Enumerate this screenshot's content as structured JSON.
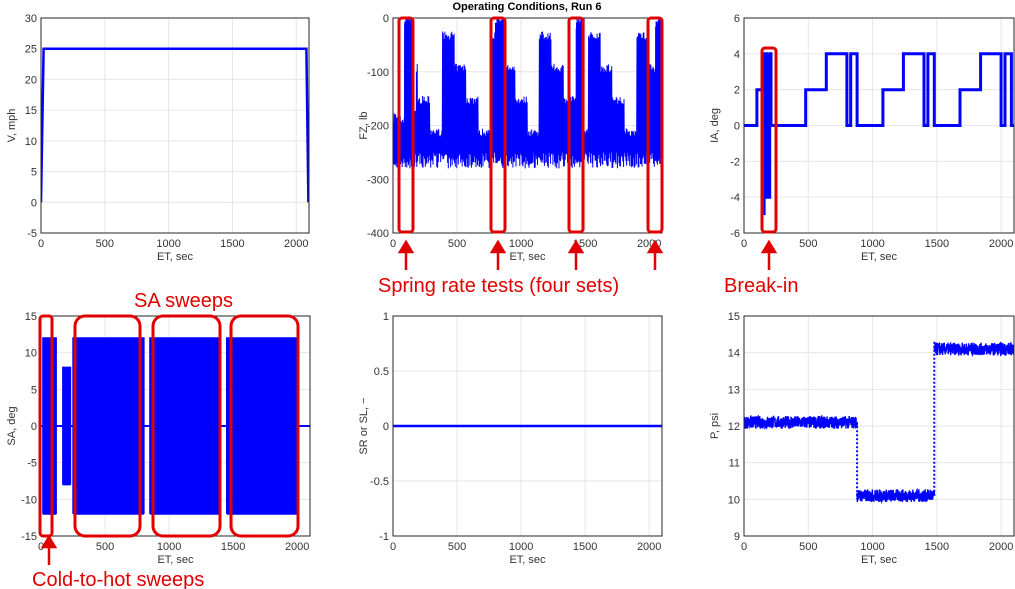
{
  "figure_title": "Operating Conditions, Run 6",
  "chart_data": [
    {
      "type": "line",
      "xlabel": "ET, sec",
      "ylabel": "V, mph",
      "xlim": [
        0,
        2100
      ],
      "ylim": [
        -5,
        30
      ],
      "xticks": [
        "0",
        "500",
        "1000",
        "1500",
        "2000"
      ],
      "yticks": [
        "-5",
        "0",
        "5",
        "10",
        "15",
        "20",
        "25",
        "30"
      ],
      "grid": true,
      "series": [
        {
          "color": "#0000ff",
          "x": [
            0,
            20,
            2080,
            2095
          ],
          "y": [
            0,
            25,
            25,
            0
          ]
        }
      ]
    },
    {
      "type": "line",
      "xlabel": "ET, sec",
      "ylabel": "FZ, lb",
      "xlim": [
        0,
        2100
      ],
      "ylim": [
        -400,
        0
      ],
      "xticks": [
        "0",
        "500",
        "1000",
        "1500",
        "2000"
      ],
      "yticks": [
        "-400",
        "-300",
        "-200",
        "-100",
        "0"
      ],
      "grid": true,
      "series": [
        {
          "color": "#0000ff",
          "pattern": "loaded load sweeps between -270 and -30 lb, spring-rate tests reaching 0 lb",
          "x": [
            0,
            2100
          ],
          "y": [
            -270,
            -30
          ]
        }
      ]
    },
    {
      "type": "line",
      "xlabel": "ET, sec",
      "ylabel": "IA, deg",
      "xlim": [
        0,
        2100
      ],
      "ylim": [
        -6,
        6
      ],
      "xticks": [
        "0",
        "500",
        "1000",
        "1500",
        "2000"
      ],
      "yticks": [
        "-6",
        "-4",
        "-2",
        "0",
        "2",
        "4",
        "6"
      ],
      "grid": true,
      "series": [
        {
          "color": "#0000ff",
          "x": [
            0,
            100,
            100,
            160,
            160,
            175,
            175,
            200,
            200,
            210,
            210,
            480,
            480,
            640,
            640,
            800,
            800,
            830,
            830,
            880,
            880,
            1080,
            1080,
            1240,
            1240,
            1400,
            1400,
            1430,
            1430,
            1480,
            1480,
            1680,
            1680,
            1840,
            1840,
            2000,
            2000,
            2030,
            2030,
            2080,
            2080,
            2100
          ],
          "y": [
            0,
            0,
            2,
            2,
            4,
            4,
            -4,
            -4,
            4,
            4,
            0,
            0,
            2,
            2,
            4,
            4,
            0,
            0,
            4,
            4,
            0,
            0,
            2,
            2,
            4,
            4,
            0,
            0,
            4,
            4,
            0,
            0,
            2,
            2,
            4,
            4,
            0,
            0,
            4,
            4,
            0,
            0
          ]
        }
      ]
    },
    {
      "type": "line",
      "xlabel": "ET, sec",
      "ylabel": "SA, deg",
      "xlim": [
        0,
        2100
      ],
      "ylim": [
        -15,
        15
      ],
      "xticks": [
        "0",
        "500",
        "1000",
        "1500",
        "2000"
      ],
      "yticks": [
        "-15",
        "-10",
        "-5",
        "0",
        "5",
        "10",
        "15"
      ],
      "grid": true,
      "series": [
        {
          "color": "#0000ff",
          "pattern": "cold-to-hot sweeps (0-130 s, ±12 deg), small sweeps (170-230 s, ±8 deg), three SA sweep blocks (250-800, 850-1390, 1450-2000 s, ±12 deg)",
          "x": [
            0,
            2100
          ],
          "y": [
            -12,
            12
          ]
        }
      ]
    },
    {
      "type": "line",
      "xlabel": "ET, sec",
      "ylabel": "SR or SL, −",
      "xlim": [
        0,
        2100
      ],
      "ylim": [
        -1,
        1
      ],
      "xticks": [
        "0",
        "500",
        "1000",
        "1500",
        "2000"
      ],
      "yticks": [
        "-1",
        "-0.5",
        "0",
        "0.5",
        "1"
      ],
      "grid": true,
      "series": [
        {
          "color": "#0000ff",
          "x": [
            0,
            2100
          ],
          "y": [
            0,
            0
          ]
        }
      ]
    },
    {
      "type": "line",
      "xlabel": "ET, sec",
      "ylabel": "P, psi",
      "xlim": [
        0,
        2100
      ],
      "ylim": [
        9,
        15
      ],
      "xticks": [
        "0",
        "500",
        "1000",
        "1500",
        "2000"
      ],
      "yticks": [
        "9",
        "10",
        "11",
        "12",
        "13",
        "14",
        "15"
      ],
      "grid": true,
      "series": [
        {
          "color": "#0000ff",
          "x": [
            0,
            880,
            880,
            1480,
            1480,
            2100
          ],
          "y": [
            12.1,
            12.1,
            10.1,
            10.1,
            14.1,
            14.1
          ]
        }
      ]
    }
  ],
  "annotations": {
    "spring_rate": "Spring rate tests (four sets)",
    "break_in": "Break-in",
    "sa_sweeps": "SA sweeps",
    "cold_to_hot": "Cold-to-hot sweeps",
    "color": "#ff0000"
  }
}
